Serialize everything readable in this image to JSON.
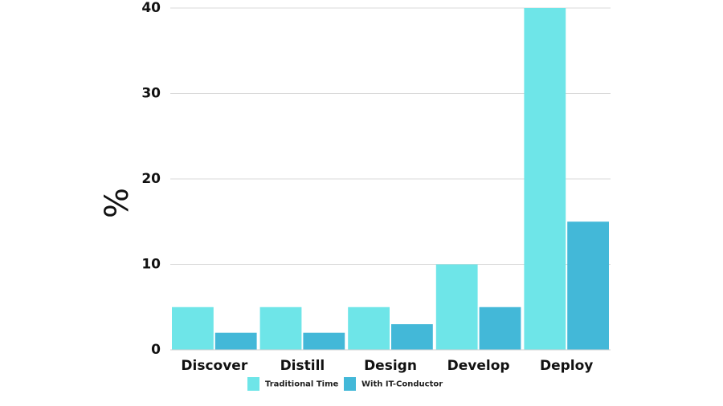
{
  "chart_data": {
    "type": "bar",
    "title": "",
    "xlabel": "",
    "ylabel": "%",
    "ylim": [
      0,
      40
    ],
    "yticks": [
      0,
      10,
      20,
      30,
      40
    ],
    "grid": true,
    "legend_position": "bottom",
    "categories": [
      "Discover",
      "Distill",
      "Design",
      "Develop",
      "Deploy"
    ],
    "series": [
      {
        "name": "Traditional Time",
        "color": "#6ee5e8",
        "values": [
          5,
          5,
          5,
          10,
          40
        ]
      },
      {
        "name": "With IT-Conductor",
        "color": "#43b8d8",
        "values": [
          2,
          2,
          3,
          5,
          15
        ]
      }
    ]
  }
}
